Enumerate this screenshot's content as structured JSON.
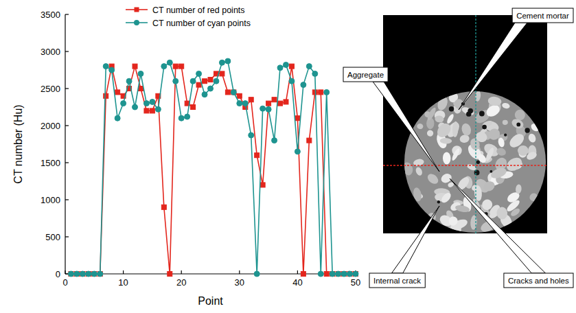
{
  "chart_data": {
    "type": "line",
    "xlabel": "Point",
    "ylabel": "CT number (Hu)",
    "x": [
      1,
      2,
      3,
      4,
      5,
      6,
      7,
      8,
      9,
      10,
      11,
      12,
      13,
      14,
      15,
      16,
      17,
      18,
      19,
      20,
      21,
      22,
      23,
      24,
      25,
      26,
      27,
      28,
      29,
      30,
      31,
      32,
      33,
      34,
      35,
      36,
      37,
      38,
      39,
      40,
      41,
      42,
      43,
      44,
      45,
      46,
      47,
      48,
      49,
      50
    ],
    "series": [
      {
        "name": "CT number of red points",
        "color": "#e3261d",
        "marker": "square",
        "line_style": "solid",
        "values": [
          0,
          0,
          0,
          0,
          0,
          0,
          2400,
          2800,
          2450,
          2400,
          2500,
          2800,
          2500,
          2200,
          2200,
          2400,
          900,
          0,
          2800,
          2800,
          2300,
          2250,
          2550,
          2600,
          2620,
          2700,
          2700,
          2450,
          2450,
          2400,
          2250,
          2350,
          1600,
          1200,
          2300,
          2350,
          2300,
          2320,
          2800,
          2100,
          0,
          1800,
          2450,
          2450,
          0,
          0,
          0,
          0,
          0,
          0
        ]
      },
      {
        "name": "CT number of cyan points",
        "color": "#1e9490",
        "marker": "circle",
        "line_style": "solid",
        "values": [
          0,
          0,
          0,
          0,
          0,
          0,
          2800,
          2750,
          2100,
          2300,
          2600,
          2250,
          2700,
          2300,
          2320,
          2220,
          2800,
          2850,
          2600,
          2100,
          2120,
          2600,
          2700,
          2420,
          2500,
          2600,
          2850,
          2870,
          2450,
          2300,
          2300,
          1870,
          0,
          2230,
          2220,
          1800,
          2780,
          2820,
          2600,
          1650,
          2550,
          2800,
          2700,
          0,
          2450,
          0,
          0,
          0,
          0,
          0
        ]
      }
    ],
    "xlim": [
      0,
      50
    ],
    "xticks": [
      0,
      10,
      20,
      30,
      40,
      50
    ],
    "ylim": [
      0,
      3500
    ],
    "yticks": [
      0,
      500,
      1000,
      1500,
      2000,
      2500,
      3000,
      3500
    ],
    "legend": "top",
    "annotations": [
      "Cement mortar",
      "Aggregate",
      "Internal crack",
      "Cracks and holes"
    ]
  }
}
